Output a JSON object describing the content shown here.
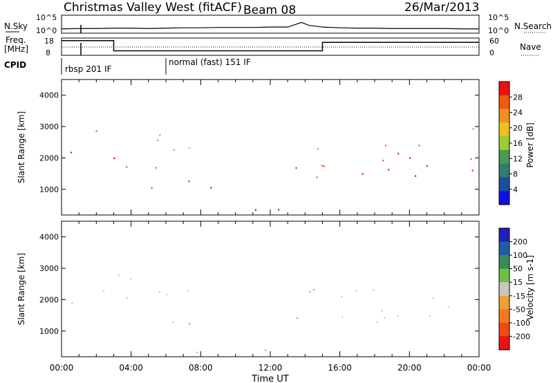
{
  "header": {
    "station": "Christmas Valley West (fitACF)",
    "beam": "Beam 08",
    "date": "26/Mar/2013"
  },
  "strip_labels": {
    "nsky": "N.Sky",
    "nsky_tick_top": "10^5",
    "nsky_tick_bottom": "10^0",
    "nsearch": "N.Search",
    "nsearch_tick_top": "10^5",
    "nsearch_tick_bottom": "10^0",
    "freq_label_1": "Freq.",
    "freq_label_2": "[MHz]",
    "freq_tick_top": "18",
    "freq_tick_bottom": "8",
    "nave": "Nave",
    "nave_tick_top": "60",
    "nave_tick_bottom": "0",
    "cpid": "CPID",
    "cpid_1": "rbsp 201 IF",
    "cpid_2": "normal (fast) 151 IF"
  },
  "colors": {
    "power": [
      "#1010e0",
      "#1a4fa0",
      "#2e7d6e",
      "#4a9a55",
      "#9acd32",
      "#f0c020",
      "#f09020",
      "#f05a10",
      "#ee1010"
    ],
    "velocity": [
      "#2020c0",
      "#1f5fa5",
      "#3a8a5a",
      "#70c040",
      "#c8c8c0",
      "#f0a030",
      "#f07a20",
      "#f04a10",
      "#ee1010"
    ]
  },
  "chart_data": [
    {
      "type": "line",
      "name": "N.Sky / N.Search",
      "x_unit": "hour UT",
      "x": [
        0,
        1,
        2,
        3,
        4,
        5,
        6,
        7,
        8,
        9,
        10,
        11,
        12,
        13,
        13.8,
        14.2,
        15,
        16,
        17,
        18,
        19,
        20,
        21,
        22,
        23,
        24
      ],
      "y": [
        1.2,
        1.3,
        1.3,
        1.4,
        1.4,
        1.3,
        1.4,
        1.5,
        1.5,
        1.6,
        1.6,
        1.6,
        1.7,
        1.7,
        3.0,
        2.2,
        1.7,
        1.5,
        1.4,
        1.4,
        1.3,
        1.3,
        1.3,
        1.3,
        1.2,
        1.2
      ],
      "ylim": [
        0,
        5
      ]
    },
    {
      "type": "line",
      "name": "Freq",
      "x_unit": "hour UT",
      "x": [
        0,
        3,
        3,
        15,
        15,
        24
      ],
      "y": [
        16.5,
        16.5,
        10.6,
        10.6,
        15.5,
        15.5
      ],
      "ylim": [
        8,
        18
      ]
    },
    {
      "type": "heatmap",
      "title": "Power",
      "xlabel": "Time UT",
      "ylabel": "Slant Range [km]",
      "xlim": [
        0,
        24
      ],
      "ylim": [
        180,
        4500
      ],
      "x_ticks": [
        "00:00",
        "04:00",
        "08:00",
        "12:00",
        "16:00",
        "20:00",
        "00:00"
      ],
      "y_ticks": [
        1000,
        2000,
        3000,
        4000
      ],
      "colorbar_label": "Power [dB]",
      "colorbar_ticks": [
        4,
        8,
        12,
        16,
        20,
        24,
        28
      ],
      "scatter_regions": [
        {
          "t0": 0,
          "t1": 3,
          "r0": 2800,
          "r1": 3050,
          "value": 27
        },
        {
          "t0": 0,
          "t1": 3,
          "r0": 1400,
          "r1": 2300,
          "value": 28
        },
        {
          "t0": 3,
          "t1": 6,
          "r0": 1400,
          "r1": 3000,
          "value": 25
        },
        {
          "t0": 3.5,
          "t1": 7,
          "r0": 700,
          "r1": 1200,
          "value": 14
        },
        {
          "t0": 6,
          "t1": 7.5,
          "r0": 1800,
          "r1": 3100,
          "value": 20
        },
        {
          "t0": 6.5,
          "t1": 9,
          "r0": 900,
          "r1": 1900,
          "value": 8
        },
        {
          "t0": 13,
          "t1": 15,
          "r0": 700,
          "r1": 3000,
          "value": 26
        },
        {
          "t0": 15,
          "t1": 24,
          "r0": 1300,
          "r1": 2900,
          "value": 29
        },
        {
          "t0": 20,
          "t1": 24,
          "r0": 2700,
          "r1": 3100,
          "value": 28
        },
        {
          "t0": 6,
          "t1": 14,
          "r0": 200,
          "r1": 450,
          "value": 6
        }
      ]
    },
    {
      "type": "heatmap",
      "title": "Velocity",
      "xlabel": "Time UT",
      "ylabel": "Slant Range [km]",
      "xlim": [
        0,
        24
      ],
      "ylim": [
        180,
        4500
      ],
      "x_ticks": [
        "00:00",
        "04:00",
        "08:00",
        "12:00",
        "16:00",
        "20:00",
        "00:00"
      ],
      "y_ticks": [
        1000,
        2000,
        3000,
        4000
      ],
      "colorbar_label": "Velocity [m s-1]",
      "colorbar_ticks": [
        200,
        100,
        50,
        15,
        -15,
        -50,
        -100,
        -200
      ],
      "scatter_regions": [
        {
          "t0": 0,
          "t1": 3,
          "r0": 1400,
          "r1": 2300,
          "value": 0
        },
        {
          "t0": 3,
          "t1": 6,
          "r0": 1400,
          "r1": 2900,
          "value": 0
        },
        {
          "t0": 6,
          "t1": 7.5,
          "r0": 1800,
          "r1": 3000,
          "value": 10
        },
        {
          "t0": 4,
          "t1": 8,
          "r0": 700,
          "r1": 1400,
          "value": 30
        },
        {
          "t0": 13.5,
          "t1": 15,
          "r0": 900,
          "r1": 3000,
          "value": 40
        },
        {
          "t0": 15,
          "t1": 24,
          "r0": 1300,
          "r1": 2800,
          "value": 0
        },
        {
          "t0": 6,
          "t1": 14,
          "r0": 200,
          "r1": 500,
          "value": -60
        }
      ]
    }
  ]
}
